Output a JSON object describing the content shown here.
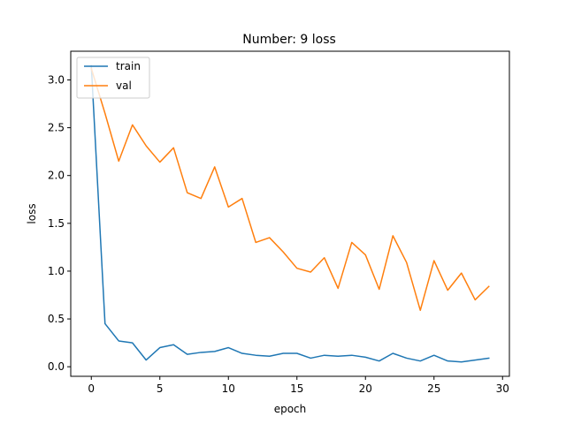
{
  "chart_data": {
    "type": "line",
    "title": "Number: 9 loss",
    "xlabel": "epoch",
    "ylabel": "loss",
    "xlim": [
      -1.5,
      30.5
    ],
    "ylim": [
      -0.1,
      3.3
    ],
    "x_ticks": [
      0,
      5,
      10,
      15,
      20,
      25,
      30
    ],
    "y_ticks": [
      0.0,
      0.5,
      1.0,
      1.5,
      2.0,
      2.5,
      3.0
    ],
    "x_tick_labels": [
      "0",
      "5",
      "10",
      "15",
      "20",
      "25",
      "30"
    ],
    "y_tick_labels": [
      "0.0",
      "0.5",
      "1.0",
      "1.5",
      "2.0",
      "2.5",
      "3.0"
    ],
    "grid": false,
    "legend_position": "top-left",
    "x": [
      0,
      1,
      2,
      3,
      4,
      5,
      6,
      7,
      8,
      9,
      10,
      11,
      12,
      13,
      14,
      15,
      16,
      17,
      18,
      19,
      20,
      21,
      22,
      23,
      24,
      25,
      26,
      27,
      28,
      29
    ],
    "series": [
      {
        "name": "train",
        "color": "#1f77b4",
        "values": [
          3.15,
          0.45,
          0.27,
          0.25,
          0.07,
          0.2,
          0.23,
          0.13,
          0.15,
          0.16,
          0.2,
          0.14,
          0.12,
          0.11,
          0.14,
          0.14,
          0.09,
          0.12,
          0.11,
          0.12,
          0.1,
          0.06,
          0.14,
          0.09,
          0.06,
          0.12,
          0.06,
          0.05,
          0.07,
          0.09
        ]
      },
      {
        "name": "val",
        "color": "#ff7f0e",
        "values": [
          3.12,
          2.65,
          2.15,
          2.53,
          2.31,
          2.14,
          2.29,
          1.82,
          1.76,
          2.09,
          1.67,
          1.76,
          1.3,
          1.35,
          1.2,
          1.03,
          0.99,
          1.14,
          0.82,
          1.3,
          1.17,
          0.81,
          1.37,
          1.09,
          0.59,
          1.11,
          0.8,
          0.98,
          0.7,
          0.84
        ]
      }
    ]
  }
}
